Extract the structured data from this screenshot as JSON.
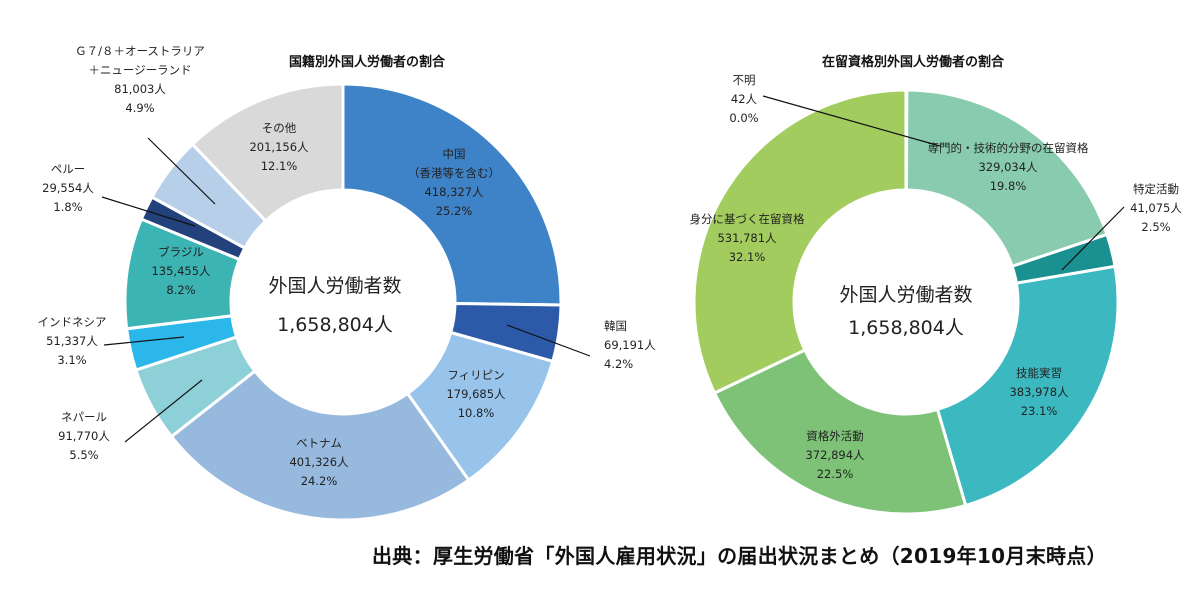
{
  "chart_data": [
    {
      "type": "pie",
      "title": "国籍別外国人労働者の割合",
      "center_title": "外国人労働者数",
      "center_value": "1,658,804人",
      "slices": [
        {
          "name": "中国",
          "name_sub": "（香港等を含む）",
          "value": 418327,
          "value_label": "418,327人",
          "percent": "25.2%",
          "color": "#3e82c8"
        },
        {
          "name": "韓国",
          "value": 69191,
          "value_label": "69,191人",
          "percent": "4.2%",
          "color": "#2c5aa8"
        },
        {
          "name": "フィリピン",
          "value": 179685,
          "value_label": "179,685人",
          "percent": "10.8%",
          "color": "#98c4ec"
        },
        {
          "name": "ベトナム",
          "value": 401326,
          "value_label": "401,326人",
          "percent": "24.2%",
          "color": "#97b9de"
        },
        {
          "name": "ネパール",
          "value": 91770,
          "value_label": "91,770人",
          "percent": "5.5%",
          "color": "#8dd0d8"
        },
        {
          "name": "インドネシア",
          "value": 51337,
          "value_label": "51,337人",
          "percent": "3.1%",
          "color": "#2cb7ea"
        },
        {
          "name": "ブラジル",
          "value": 135455,
          "value_label": "135,455人",
          "percent": "8.2%",
          "color": "#3cb4b4"
        },
        {
          "name": "ペルー",
          "value": 29554,
          "value_label": "29,554人",
          "percent": "1.8%",
          "color": "#23427c"
        },
        {
          "name": "Ｇ７/８＋オーストラリア",
          "name_sub": "＋ニュージーランド",
          "value": 81003,
          "value_label": "81,003人",
          "percent": "4.9%",
          "color": "#b7cfe9"
        },
        {
          "name": "その他",
          "value": 201156,
          "value_label": "201,156人",
          "percent": "12.1%",
          "color": "#d9d9d9"
        }
      ]
    },
    {
      "type": "pie",
      "title": "在留資格別外国人労働者の割合",
      "center_title": "外国人労働者数",
      "center_value": "1,658,804人",
      "slices": [
        {
          "name": "専門的・技術的分野の在留資格",
          "value": 329034,
          "value_label": "329,034人",
          "percent": "19.8%",
          "color": "#88cbaf"
        },
        {
          "name": "特定活動",
          "value": 41075,
          "value_label": "41,075人",
          "percent": "2.5%",
          "color": "#1b9090"
        },
        {
          "name": "技能実習",
          "value": 383978,
          "value_label": "383,978人",
          "percent": "23.1%",
          "color": "#3cb8c0"
        },
        {
          "name": "資格外活動",
          "value": 372894,
          "value_label": "372,894人",
          "percent": "22.5%",
          "color": "#7dc277"
        },
        {
          "name": "身分に基づく在留資格",
          "value": 531781,
          "value_label": "531,781人",
          "percent": "32.1%",
          "color": "#a2cd5e"
        },
        {
          "name": "不明",
          "value": 42,
          "value_label": "42人",
          "percent": "0.0%",
          "color": "#8fcf75"
        }
      ]
    }
  ],
  "source": "出典：厚生労働省「外国人雇用状況」の届出状況まとめ（2019年10月末時点）"
}
